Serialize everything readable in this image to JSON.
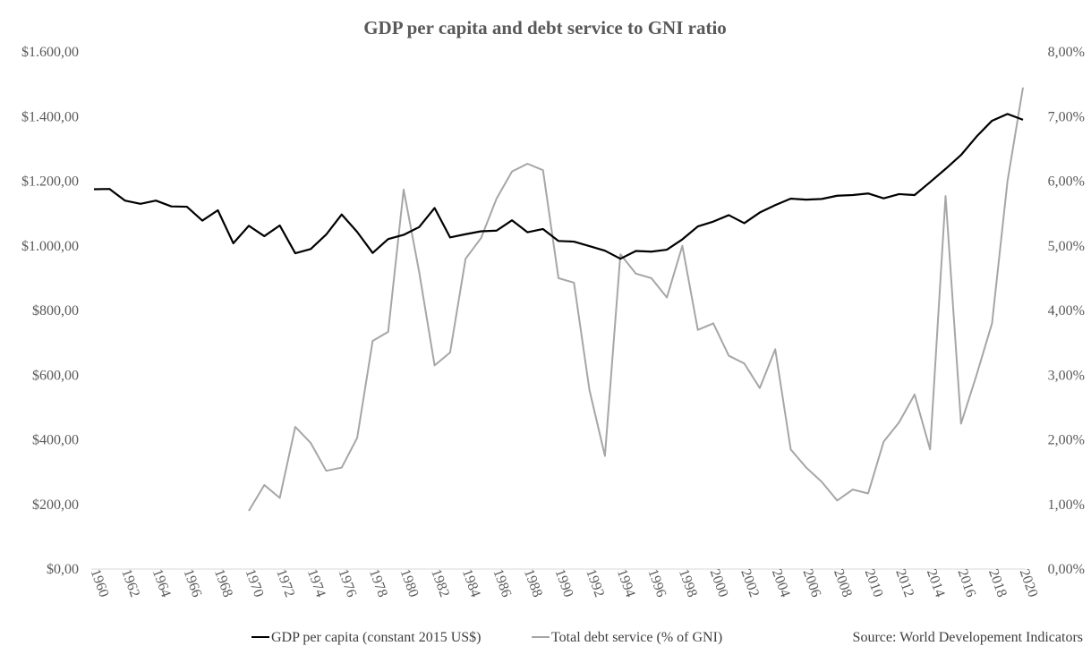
{
  "chart_data": {
    "type": "line",
    "title": "GDP per capita and debt service to GNI ratio",
    "source": "Source: World Developement Indicators",
    "x": [
      1960,
      1961,
      1962,
      1963,
      1964,
      1965,
      1966,
      1967,
      1968,
      1969,
      1970,
      1971,
      1972,
      1973,
      1974,
      1975,
      1976,
      1977,
      1978,
      1979,
      1980,
      1981,
      1982,
      1983,
      1984,
      1985,
      1986,
      1987,
      1988,
      1989,
      1990,
      1991,
      1992,
      1993,
      1994,
      1995,
      1996,
      1997,
      1998,
      1999,
      2000,
      2001,
      2002,
      2003,
      2004,
      2005,
      2006,
      2007,
      2008,
      2009,
      2010,
      2011,
      2012,
      2013,
      2014,
      2015,
      2016,
      2017,
      2018,
      2019,
      2020
    ],
    "x_tick_labels": [
      "1960",
      "1962",
      "1964",
      "1966",
      "1968",
      "1970",
      "1972",
      "1974",
      "1976",
      "1978",
      "1980",
      "1982",
      "1984",
      "1986",
      "1988",
      "1990",
      "1992",
      "1994",
      "1996",
      "1998",
      "2000",
      "2002",
      "2004",
      "2006",
      "2008",
      "2010",
      "2012",
      "2014",
      "2016",
      "2018",
      "2020"
    ],
    "y_left": {
      "ylim": [
        0,
        1600
      ],
      "tick_labels": [
        "$0,00",
        "$200,00",
        "$400,00",
        "$600,00",
        "$800,00",
        "$1.000,00",
        "$1.200,00",
        "$1.400,00",
        "$1.600,00"
      ]
    },
    "y_right": {
      "ylim": [
        0,
        8
      ],
      "tick_labels": [
        "0,00%",
        "1,00%",
        "2,00%",
        "3,00%",
        "4,00%",
        "5,00%",
        "6,00%",
        "7,00%",
        "8,00%"
      ]
    },
    "grid": false,
    "legend_position": "bottom",
    "series": [
      {
        "name": "GDP per capita (constant 2015 US$)",
        "axis": "left",
        "color": "#000000",
        "values": [
          1175,
          1176,
          1140,
          1130,
          1140,
          1122,
          1121,
          1078,
          1110,
          1008,
          1062,
          1030,
          1063,
          977,
          990,
          1035,
          1097,
          1043,
          978,
          1021,
          1034,
          1058,
          1117,
          1026,
          1036,
          1045,
          1047,
          1079,
          1042,
          1052,
          1015,
          1013,
          999,
          985,
          960,
          984,
          982,
          988,
          1020,
          1060,
          1075,
          1095,
          1070,
          1103,
          1126,
          1146,
          1143,
          1145,
          1155,
          1157,
          1162,
          1147,
          1160,
          1157,
          1197,
          1238,
          1281,
          1338,
          1387,
          1408,
          1390
        ]
      },
      {
        "name": "Total debt service (% of GNI)",
        "axis": "right",
        "color": "#a6a6a6",
        "values": [
          null,
          null,
          null,
          null,
          null,
          null,
          null,
          null,
          null,
          null,
          0.9,
          1.3,
          1.1,
          2.2,
          1.95,
          1.52,
          1.57,
          2.03,
          3.53,
          3.67,
          5.87,
          4.6,
          3.15,
          3.35,
          4.8,
          5.12,
          5.73,
          6.15,
          6.27,
          6.17,
          4.5,
          4.43,
          2.77,
          1.75,
          4.87,
          4.57,
          4.5,
          4.2,
          5.0,
          3.7,
          3.8,
          3.3,
          3.18,
          2.8,
          3.4,
          1.85,
          1.57,
          1.35,
          1.06,
          1.23,
          1.17,
          1.97,
          2.27,
          2.7,
          1.85,
          5.77,
          2.25,
          3.0,
          3.8,
          6.0,
          7.45
        ]
      }
    ]
  }
}
